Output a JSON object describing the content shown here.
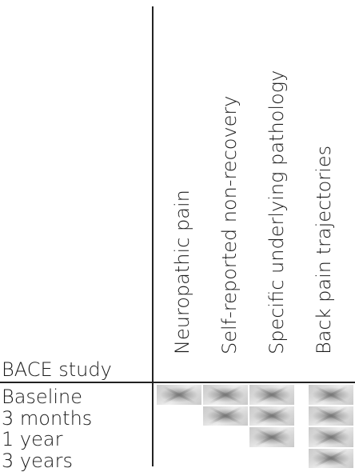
{
  "table": {
    "study_title": "BACE study",
    "columns": [
      "Neuropathic pain",
      "Self-reported non-recovery",
      "Specific underlying pathology",
      "Back pain trajectories"
    ],
    "rows": [
      {
        "label": "Baseline",
        "marked": [
          true,
          true,
          true,
          true
        ]
      },
      {
        "label": "3 months",
        "marked": [
          false,
          true,
          true,
          true
        ]
      },
      {
        "label": "1 year",
        "marked": [
          false,
          false,
          true,
          true
        ]
      },
      {
        "label": "3 years",
        "marked": [
          false,
          false,
          false,
          true
        ]
      }
    ]
  }
}
